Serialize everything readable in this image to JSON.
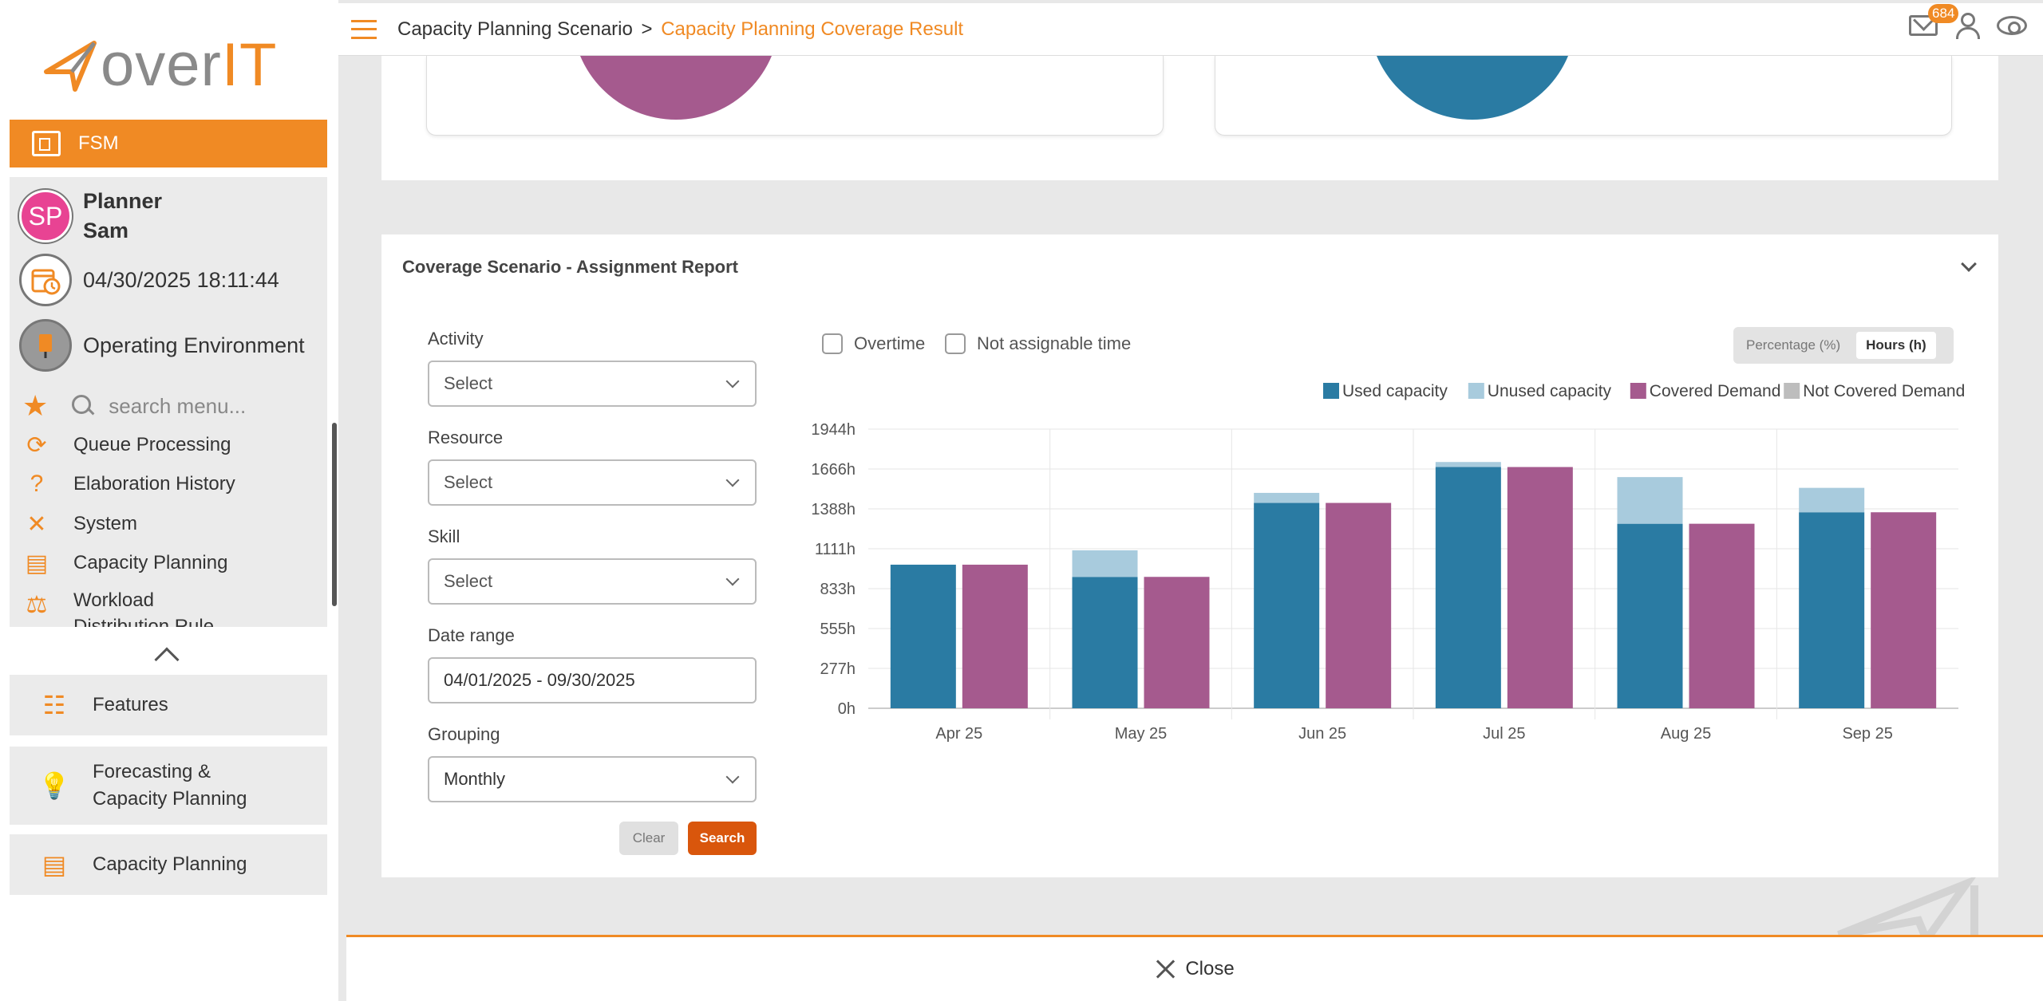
{
  "brand": {
    "over": "over",
    "it": "IT"
  },
  "sidebar": {
    "app": "FSM",
    "user": {
      "initials": "SP",
      "first": "Planner",
      "last": "Sam"
    },
    "datetime": "04/30/2025 18:11:44",
    "environment": "Operating Environment",
    "search_placeholder": "search menu...",
    "menu": [
      {
        "label": "Queue Processing",
        "icon": "queue-icon"
      },
      {
        "label": "Elaboration History",
        "icon": "history-icon"
      },
      {
        "label": "System",
        "icon": "tools-icon"
      },
      {
        "label": "Capacity Planning",
        "icon": "clipboard-icon"
      },
      {
        "label": "Workload Distribution Rule",
        "icon": "scale-icon"
      }
    ],
    "nav_cards": [
      {
        "label": "Features",
        "icon": "features-icon"
      },
      {
        "label": "Forecasting &",
        "label2": "Capacity Planning",
        "icon": "bulb-icon"
      },
      {
        "label": "Capacity Planning",
        "icon": "clipboard-icon"
      }
    ]
  },
  "topbar": {
    "breadcrumb": [
      "Capacity Planning Scenario",
      "Capacity Planning Coverage Result"
    ],
    "separator": ">",
    "notifications": "684"
  },
  "report": {
    "title": "Coverage Scenario - Assignment Report",
    "filters": {
      "activity": {
        "label": "Activity",
        "value": "Select"
      },
      "resource": {
        "label": "Resource",
        "value": "Select"
      },
      "skill": {
        "label": "Skill",
        "value": "Select"
      },
      "date_range": {
        "label": "Date range",
        "value": "04/01/2025 - 09/30/2025"
      },
      "grouping": {
        "label": "Grouping",
        "value": "Monthly"
      }
    },
    "buttons": {
      "clear": "Clear",
      "search": "Search"
    },
    "checkboxes": {
      "overtime": "Overtime",
      "not_assignable": "Not assignable time"
    },
    "toggle": {
      "percentage": "Percentage (%)",
      "hours": "Hours (h)"
    }
  },
  "chart_data": {
    "type": "bar",
    "stacked": true,
    "categories": [
      "Apr 25",
      "May 25",
      "Jun 25",
      "Jul 25",
      "Aug 25",
      "Sep 25"
    ],
    "y_ticks": [
      "0h",
      "277h",
      "555h",
      "833h",
      "1111h",
      "1388h",
      "1666h",
      "1944h"
    ],
    "ylim": [
      0,
      1944
    ],
    "grid": true,
    "legend_position": "top-right",
    "colors": {
      "used": "#2a7ba3",
      "unused": "#a8cbdd",
      "covered": "#a55a8e",
      "not_covered": "#bdbdbd"
    },
    "legend": [
      "Used capacity",
      "Unused capacity",
      "Covered Demand",
      "Not Covered Demand"
    ],
    "series": [
      {
        "name": "Used capacity",
        "stack": "capacity",
        "values": [
          1000,
          915,
          1430,
          1680,
          1285,
          1365
        ]
      },
      {
        "name": "Unused capacity",
        "stack": "capacity",
        "values": [
          0,
          185,
          70,
          35,
          325,
          170
        ]
      },
      {
        "name": "Covered Demand",
        "stack": "demand",
        "values": [
          1000,
          915,
          1430,
          1680,
          1285,
          1365
        ]
      },
      {
        "name": "Not Covered Demand",
        "stack": "demand",
        "values": [
          0,
          0,
          0,
          0,
          0,
          0
        ]
      }
    ]
  },
  "footer": {
    "close": "Close"
  }
}
